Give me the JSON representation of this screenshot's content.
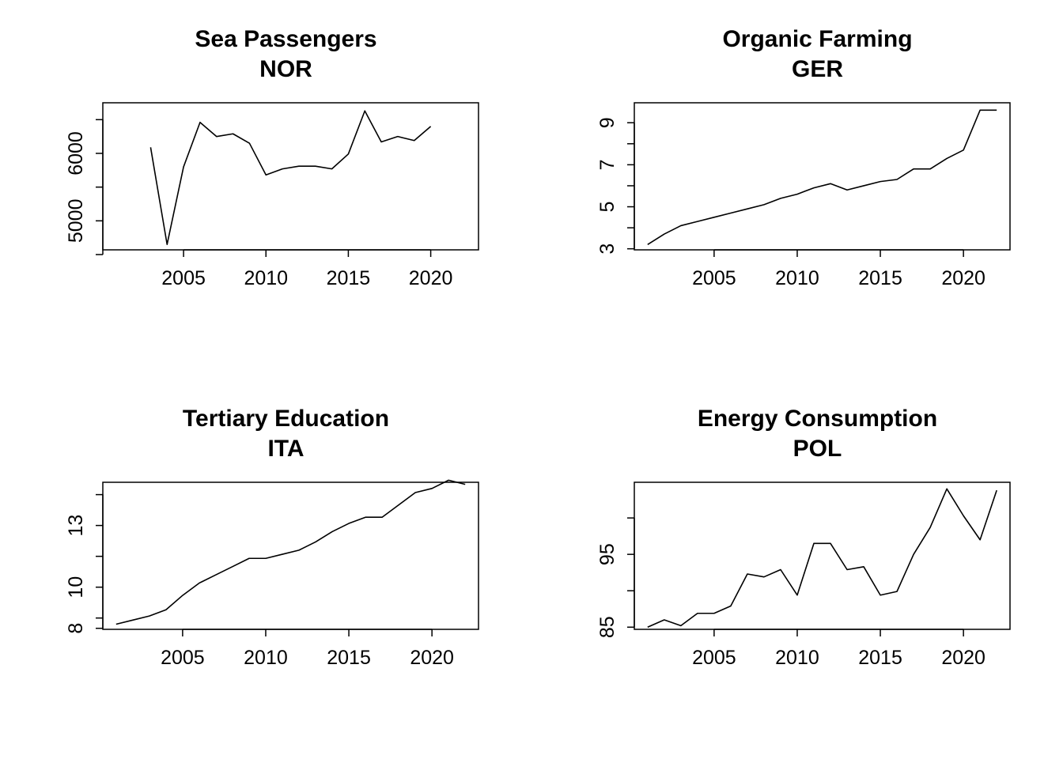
{
  "chart_data": [
    {
      "type": "line",
      "title": "Sea Passengers",
      "subtitle": "NOR",
      "xlabel": "",
      "ylabel": "",
      "xlim": [
        2000.1,
        2022.9
      ],
      "ylim": [
        4570,
        6750
      ],
      "xticks": [
        2005,
        2010,
        2015,
        2020
      ],
      "yticks": [
        4500,
        5000,
        5500,
        6000,
        6500
      ],
      "ytick_labels": [
        5000,
        6000
      ],
      "grid": false,
      "x": [
        2003,
        2004,
        2005,
        2006,
        2007,
        2008,
        2009,
        2010,
        2011,
        2012,
        2013,
        2014,
        2015,
        2016,
        2017,
        2018,
        2019,
        2020
      ],
      "values": [
        6090,
        4650,
        5800,
        6460,
        6250,
        6290,
        6150,
        5680,
        5770,
        5810,
        5810,
        5770,
        5990,
        6630,
        6170,
        6250,
        6190,
        6400
      ]
    },
    {
      "type": "line",
      "title": "Organic Farming",
      "subtitle": "GER",
      "xlabel": "",
      "ylabel": "",
      "xlim": [
        2000.2,
        2022.8
      ],
      "ylim": [
        2.95,
        9.95
      ],
      "xticks": [
        2005,
        2010,
        2015,
        2020
      ],
      "yticks": [
        3,
        4,
        5,
        6,
        7,
        8,
        9
      ],
      "ytick_labels": [
        3,
        5,
        7,
        9
      ],
      "grid": false,
      "x": [
        2001,
        2002,
        2003,
        2004,
        2005,
        2006,
        2007,
        2008,
        2009,
        2010,
        2011,
        2012,
        2013,
        2014,
        2015,
        2016,
        2017,
        2018,
        2019,
        2020,
        2021,
        2022
      ],
      "values": [
        3.2,
        3.7,
        4.1,
        4.3,
        4.5,
        4.7,
        4.9,
        5.1,
        5.4,
        5.6,
        5.9,
        6.1,
        5.8,
        6.0,
        6.2,
        6.3,
        6.8,
        6.8,
        7.3,
        7.7,
        9.6,
        9.6
      ]
    },
    {
      "type": "line",
      "title": "Tertiary Education",
      "subtitle": "ITA",
      "xlabel": "",
      "ylabel": "",
      "xlim": [
        2000.2,
        2022.8
      ],
      "ylim": [
        7.95,
        15.1
      ],
      "xticks": [
        2005,
        2010,
        2015,
        2020
      ],
      "yticks": [
        8,
        8.5,
        10,
        11.5,
        13,
        14.5
      ],
      "ytick_labels": [
        8,
        10,
        13
      ],
      "grid": false,
      "x": [
        2001,
        2002,
        2003,
        2004,
        2005,
        2006,
        2007,
        2008,
        2009,
        2010,
        2011,
        2012,
        2013,
        2014,
        2015,
        2016,
        2017,
        2018,
        2019,
        2020,
        2021,
        2022
      ],
      "values": [
        8.2,
        8.4,
        8.6,
        8.9,
        9.6,
        10.2,
        10.6,
        11.0,
        11.4,
        11.4,
        11.6,
        11.8,
        12.2,
        12.7,
        13.1,
        13.4,
        13.4,
        14.0,
        14.6,
        14.8,
        15.2,
        15.0
      ]
    },
    {
      "type": "line",
      "title": "Energy Consumption",
      "subtitle": "POL",
      "xlabel": "",
      "ylabel": "",
      "xlim": [
        2000.2,
        2022.8
      ],
      "ylim": [
        84.7,
        104.9
      ],
      "xticks": [
        2005,
        2010,
        2015,
        2020
      ],
      "yticks": [
        85,
        90,
        95,
        100
      ],
      "ytick_labels": [
        85,
        95
      ],
      "grid": false,
      "x": [
        2001,
        2002,
        2003,
        2004,
        2005,
        2006,
        2007,
        2008,
        2009,
        2010,
        2011,
        2012,
        2013,
        2014,
        2015,
        2016,
        2017,
        2018,
        2019,
        2020,
        2021,
        2022
      ],
      "values": [
        85.0,
        86.0,
        85.2,
        86.9,
        86.9,
        87.9,
        92.3,
        91.9,
        92.9,
        89.4,
        96.5,
        96.5,
        92.9,
        93.3,
        89.4,
        89.9,
        95.0,
        98.7,
        104.0,
        100.3,
        97.0,
        103.8
      ]
    }
  ]
}
